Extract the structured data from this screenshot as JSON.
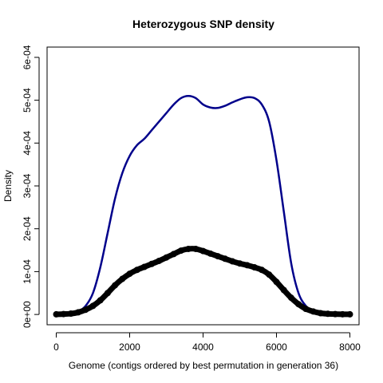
{
  "chart_data": {
    "type": "line",
    "title": "Heterozygous SNP density",
    "xlabel": "Genome (contigs ordered by best permutation in generation 36)",
    "ylabel": "Density",
    "xlim": [
      -250,
      8250
    ],
    "ylim": [
      -2.4e-05,
      0.000624
    ],
    "x_ticks": [
      0,
      2000,
      4000,
      6000,
      8000
    ],
    "x_tick_labels": [
      "0",
      "2000",
      "4000",
      "6000",
      "8000"
    ],
    "y_ticks": [
      0,
      0.0001,
      0.0002,
      0.0003,
      0.0004,
      0.0005,
      0.0006
    ],
    "y_tick_labels": [
      "0e+00",
      "1e-04",
      "2e-04",
      "3e-04",
      "4e-04",
      "5e-04",
      "6e-04"
    ],
    "grid": false,
    "series": [
      {
        "color": "#00008b",
        "style": "line",
        "x": [
          0,
          200,
          400,
          600,
          800,
          1000,
          1200,
          1400,
          1600,
          1800,
          2000,
          2200,
          2400,
          2600,
          2800,
          3000,
          3200,
          3400,
          3600,
          3800,
          4000,
          4200,
          4400,
          4600,
          4800,
          5000,
          5200,
          5400,
          5600,
          5800,
          6000,
          6200,
          6400,
          6600,
          6800,
          7000,
          7200,
          7400,
          7600,
          7800,
          8000
        ],
        "values": [
          3e-07,
          8e-07,
          2e-06,
          7e-06,
          2e-05,
          5e-05,
          0.00011,
          0.00019,
          0.00027,
          0.00033,
          0.00037,
          0.000395,
          0.00041,
          0.00043,
          0.00045,
          0.00047,
          0.00049,
          0.000505,
          0.00051,
          0.000505,
          0.00049,
          0.000483,
          0.000482,
          0.000487,
          0.000495,
          0.000502,
          0.000507,
          0.000505,
          0.00049,
          0.00045,
          0.00036,
          0.00024,
          0.00012,
          5e-05,
          2e-05,
          8e-06,
          3e-06,
          1.2e-06,
          6e-07,
          4e-07,
          3e-07
        ]
      },
      {
        "color": "#000000",
        "style": "thick-points",
        "x": [
          0,
          200,
          400,
          600,
          800,
          1000,
          1200,
          1400,
          1600,
          1800,
          2000,
          2200,
          2400,
          2600,
          2800,
          3000,
          3200,
          3400,
          3600,
          3800,
          4000,
          4200,
          4400,
          4600,
          4800,
          5000,
          5200,
          5400,
          5600,
          5800,
          6000,
          6200,
          6400,
          6600,
          6800,
          7000,
          7200,
          7400,
          7600,
          7800,
          8000
        ],
        "values": [
          4e-07,
          1e-06,
          2e-06,
          5e-06,
          1.1e-05,
          2e-05,
          3.3e-05,
          5e-05,
          6.8e-05,
          8.3e-05,
          9.5e-05,
          0.000104,
          0.000111,
          0.000118,
          0.000125,
          0.000133,
          0.000141,
          0.000149,
          0.000153,
          0.000153,
          0.000148,
          0.000142,
          0.000136,
          0.00013,
          0.000124,
          0.000119,
          0.000115,
          0.00011,
          0.000104,
          9.3e-05,
          7.6e-05,
          5.7e-05,
          3.9e-05,
          2.4e-05,
          1.3e-05,
          7e-06,
          3e-06,
          1.5e-06,
          8e-07,
          5e-07,
          4e-07
        ]
      }
    ]
  }
}
